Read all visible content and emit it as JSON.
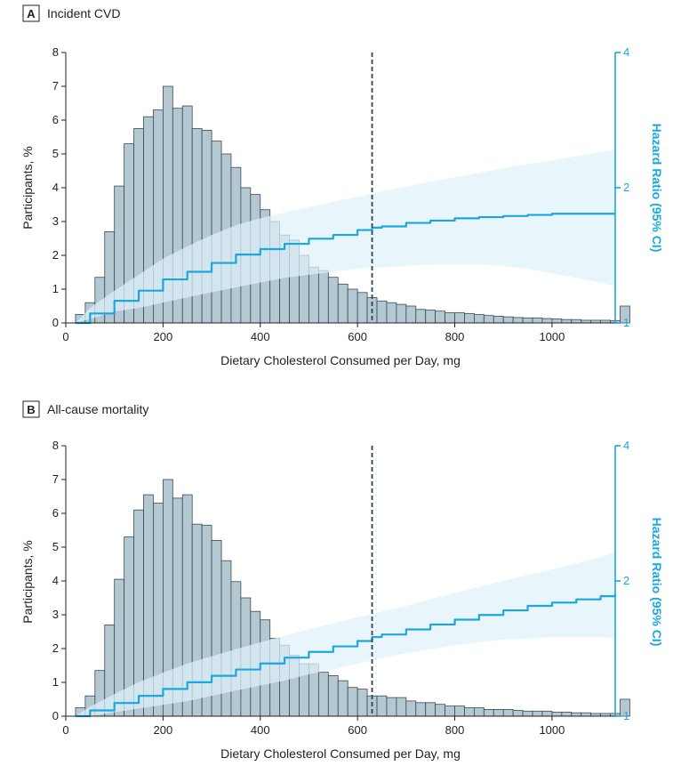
{
  "colors": {
    "bar_fill": "#b4c8d2",
    "bar_stroke": "#3b4a56",
    "hr_line": "#1aa7e0",
    "ci_band": "#dff1fa",
    "ref_line": "#2d4456",
    "axis": "#231f20"
  },
  "chart_data": [
    {
      "type": "bar",
      "panel_letter": "A",
      "title": "Incident CVD",
      "xlabel": "Dietary Cholesterol Consumed per Day, mg",
      "ylabel": "Participants, %",
      "ylabel_right": "Hazard Ratio (95% CI)",
      "xlim": [
        0,
        1130
      ],
      "ylim": [
        0,
        8
      ],
      "ylim_right": [
        1,
        4
      ],
      "y_right_scale": "log",
      "x_ticks": [
        0,
        200,
        400,
        600,
        800,
        1000
      ],
      "y_ticks": [
        0,
        1,
        2,
        3,
        4,
        5,
        6,
        7,
        8
      ],
      "y_right_ticks": [
        1,
        2,
        4
      ],
      "reference_line_x": 630,
      "grid": false,
      "histogram": {
        "bin_width": 20,
        "bin_start": 20,
        "values": [
          0.25,
          0.6,
          1.35,
          2.7,
          4.05,
          5.3,
          5.75,
          6.1,
          6.3,
          7.0,
          6.35,
          6.42,
          5.75,
          5.7,
          5.38,
          5.0,
          4.6,
          4.0,
          3.8,
          3.35,
          3.0,
          2.6,
          2.45,
          2.0,
          1.65,
          1.55,
          1.35,
          1.15,
          1.0,
          0.9,
          0.75,
          0.65,
          0.6,
          0.55,
          0.5,
          0.4,
          0.38,
          0.35,
          0.3,
          0.3,
          0.28,
          0.25,
          0.22,
          0.2,
          0.18,
          0.16,
          0.15,
          0.15,
          0.13,
          0.12,
          0.1,
          0.1,
          0.08,
          0.08,
          0.08,
          0.07,
          0.5
        ]
      },
      "hazard_ratio": {
        "x": [
          20,
          50,
          100,
          150,
          200,
          250,
          300,
          350,
          400,
          450,
          500,
          550,
          600,
          630,
          650,
          700,
          750,
          800,
          850,
          900,
          950,
          1000,
          1050,
          1100,
          1130
        ],
        "y": [
          1.0,
          1.05,
          1.12,
          1.18,
          1.25,
          1.3,
          1.36,
          1.42,
          1.46,
          1.5,
          1.54,
          1.57,
          1.61,
          1.63,
          1.64,
          1.67,
          1.69,
          1.71,
          1.72,
          1.73,
          1.74,
          1.75,
          1.75,
          1.75,
          1.75
        ],
        "lo": [
          1.0,
          1.02,
          1.06,
          1.08,
          1.11,
          1.14,
          1.17,
          1.2,
          1.23,
          1.26,
          1.28,
          1.3,
          1.32,
          1.33,
          1.33,
          1.34,
          1.35,
          1.35,
          1.35,
          1.34,
          1.32,
          1.29,
          1.26,
          1.23,
          1.21
        ],
        "hi": [
          1.0,
          1.08,
          1.18,
          1.28,
          1.39,
          1.48,
          1.57,
          1.65,
          1.71,
          1.76,
          1.81,
          1.86,
          1.91,
          1.94,
          1.96,
          2.01,
          2.06,
          2.11,
          2.16,
          2.21,
          2.26,
          2.3,
          2.35,
          2.4,
          2.43
        ]
      }
    },
    {
      "type": "bar",
      "panel_letter": "B",
      "title": "All-cause mortality",
      "xlabel": "Dietary Cholesterol Consumed per Day, mg",
      "ylabel": "Participants, %",
      "ylabel_right": "Hazard Ratio (95% CI)",
      "xlim": [
        0,
        1130
      ],
      "ylim": [
        0,
        8
      ],
      "ylim_right": [
        1,
        4
      ],
      "y_right_scale": "log",
      "x_ticks": [
        0,
        200,
        400,
        600,
        800,
        1000
      ],
      "y_ticks": [
        0,
        1,
        2,
        3,
        4,
        5,
        6,
        7,
        8
      ],
      "y_right_ticks": [
        1,
        2,
        4
      ],
      "reference_line_x": 630,
      "grid": false,
      "histogram": {
        "bin_width": 20,
        "bin_start": 20,
        "values": [
          0.25,
          0.6,
          1.35,
          2.7,
          4.05,
          5.3,
          6.1,
          6.55,
          6.3,
          7.0,
          6.45,
          6.55,
          5.68,
          5.65,
          5.2,
          4.6,
          3.98,
          3.5,
          3.1,
          2.85,
          2.3,
          2.1,
          1.8,
          1.55,
          1.55,
          1.3,
          1.2,
          1.05,
          0.85,
          0.8,
          0.6,
          0.6,
          0.55,
          0.55,
          0.45,
          0.4,
          0.4,
          0.35,
          0.3,
          0.3,
          0.25,
          0.25,
          0.2,
          0.2,
          0.2,
          0.17,
          0.15,
          0.15,
          0.15,
          0.12,
          0.12,
          0.1,
          0.1,
          0.08,
          0.08,
          0.08,
          0.5
        ]
      },
      "hazard_ratio": {
        "x": [
          20,
          50,
          100,
          150,
          200,
          250,
          300,
          350,
          400,
          450,
          500,
          550,
          600,
          630,
          650,
          700,
          750,
          800,
          850,
          900,
          950,
          1000,
          1050,
          1100,
          1130
        ],
        "y": [
          1.0,
          1.03,
          1.07,
          1.11,
          1.15,
          1.19,
          1.23,
          1.27,
          1.31,
          1.35,
          1.39,
          1.43,
          1.47,
          1.5,
          1.52,
          1.56,
          1.6,
          1.64,
          1.68,
          1.72,
          1.76,
          1.79,
          1.82,
          1.85,
          1.87
        ],
        "lo": [
          1.0,
          1.0,
          1.02,
          1.04,
          1.06,
          1.08,
          1.11,
          1.14,
          1.17,
          1.2,
          1.24,
          1.27,
          1.31,
          1.33,
          1.35,
          1.38,
          1.41,
          1.44,
          1.46,
          1.48,
          1.49,
          1.5,
          1.5,
          1.5,
          1.49
        ],
        "hi": [
          1.0,
          1.05,
          1.12,
          1.19,
          1.25,
          1.31,
          1.36,
          1.41,
          1.46,
          1.51,
          1.56,
          1.61,
          1.66,
          1.69,
          1.71,
          1.76,
          1.82,
          1.88,
          1.94,
          2.0,
          2.06,
          2.12,
          2.19,
          2.26,
          2.31
        ]
      }
    }
  ]
}
